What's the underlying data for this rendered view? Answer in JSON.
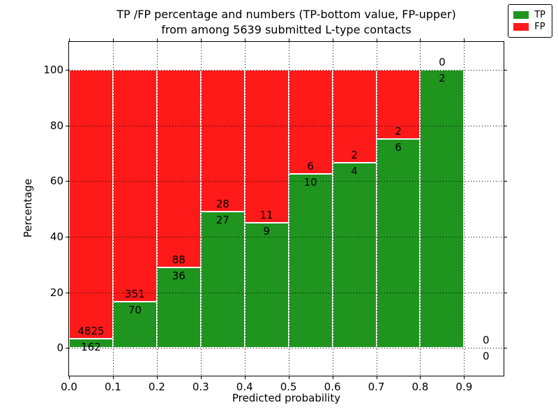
{
  "figure": {
    "title_line1": "TP /FP percentage and numbers (TP-bottom value, FP-upper)",
    "title_line2": "from among 5639 submitted L-type contacts",
    "xlabel": "Predicted probability",
    "ylabel": "Percentage"
  },
  "legend": {
    "items": [
      {
        "label": "TP",
        "color": "#1f941f"
      },
      {
        "label": "FP",
        "color": "#ff1a1a"
      }
    ]
  },
  "colors": {
    "tp": "#1f941f",
    "fp": "#ff1a1a",
    "grid": "#000000",
    "spine": "#000000",
    "background": "#ffffff"
  },
  "chart_data": {
    "type": "bar",
    "stacked": true,
    "title": "TP /FP percentage and numbers (TP-bottom value, FP-upper) from among 5639 submitted L-type contacts",
    "xlabel": "Predicted probability",
    "ylabel": "Percentage",
    "xlim": [
      0.0,
      0.99
    ],
    "ylim": [
      -10,
      110
    ],
    "grid": true,
    "legend_position": "upper right",
    "total_contacts": 5639,
    "xticks": [
      "0.0",
      "0.1",
      "0.2",
      "0.3",
      "0.4",
      "0.5",
      "0.6",
      "0.7",
      "0.8",
      "0.9"
    ],
    "yticks": [
      0,
      20,
      40,
      60,
      80,
      100
    ],
    "series": [
      {
        "name": "TP",
        "color_key": "tp"
      },
      {
        "name": "FP",
        "color_key": "fp"
      }
    ],
    "bins": [
      {
        "x0": 0.0,
        "x1": 0.1,
        "tp": 162,
        "fp": 4825,
        "tp_pct": 3.25
      },
      {
        "x0": 0.1,
        "x1": 0.2,
        "tp": 70,
        "fp": 351,
        "tp_pct": 16.63
      },
      {
        "x0": 0.2,
        "x1": 0.3,
        "tp": 36,
        "fp": 88,
        "tp_pct": 29.03
      },
      {
        "x0": 0.3,
        "x1": 0.4,
        "tp": 27,
        "fp": 28,
        "tp_pct": 49.09
      },
      {
        "x0": 0.4,
        "x1": 0.5,
        "tp": 9,
        "fp": 11,
        "tp_pct": 45.0
      },
      {
        "x0": 0.5,
        "x1": 0.6,
        "tp": 10,
        "fp": 6,
        "tp_pct": 62.5
      },
      {
        "x0": 0.6,
        "x1": 0.7,
        "tp": 4,
        "fp": 2,
        "tp_pct": 66.67
      },
      {
        "x0": 0.7,
        "x1": 0.8,
        "tp": 6,
        "fp": 2,
        "tp_pct": 75.0
      },
      {
        "x0": 0.8,
        "x1": 0.9,
        "tp": 2,
        "fp": 0,
        "tp_pct": 100.0
      },
      {
        "x0": 0.9,
        "x1": 1.0,
        "tp": 0,
        "fp": 0,
        "tp_pct": 0.0
      }
    ]
  }
}
